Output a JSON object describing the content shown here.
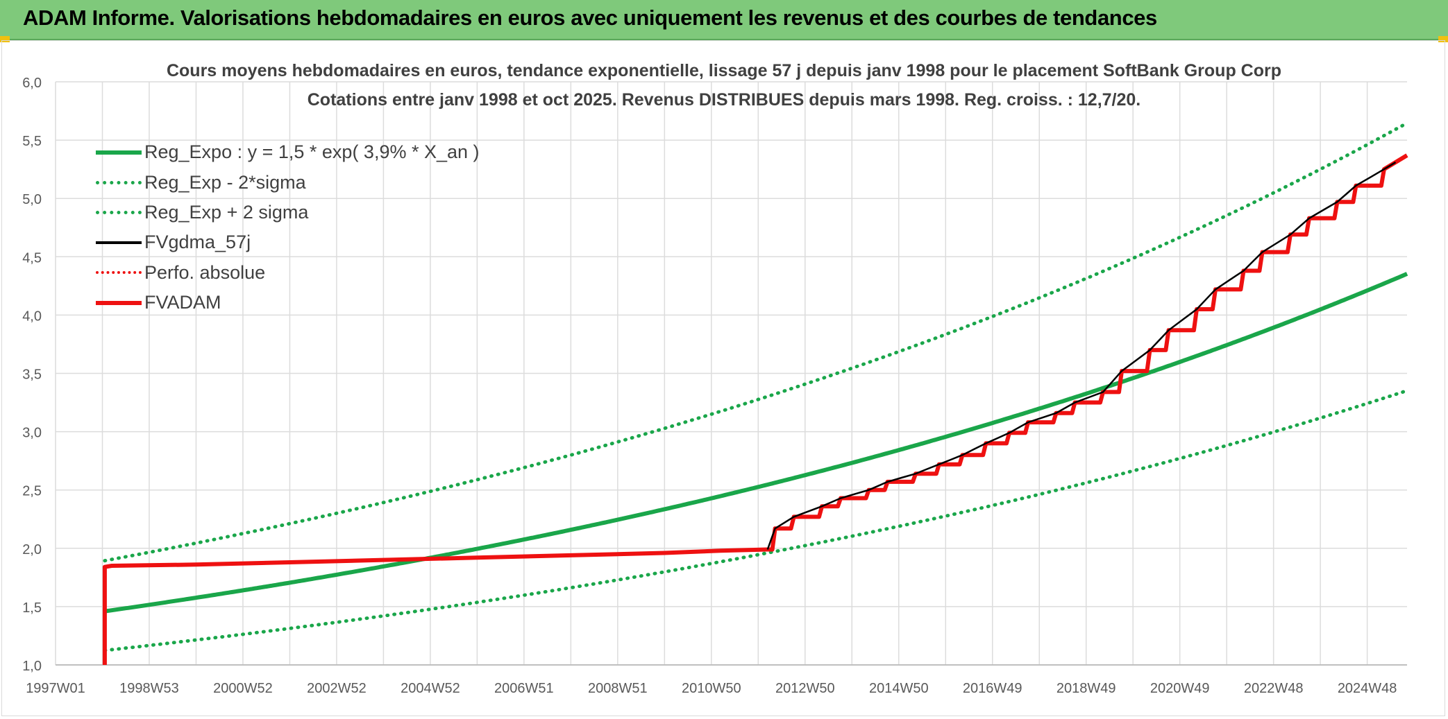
{
  "header": {
    "title": "ADAM Informe. Valorisations hebdomadaires en euros avec uniquement les revenus et des courbes de tendances"
  },
  "colors": {
    "header_bg": "#7fc97b",
    "trend_green": "#1aa64a",
    "band_green": "#1aa64a",
    "fv_black": "#000000",
    "adam_red": "#ee1111",
    "grid": "#dcdcdc"
  },
  "chart_data": {
    "type": "line",
    "title_line1": "Cours moyens hebdomadaires en euros, tendance exponentielle, lissage 57 j depuis janv 1998 pour le placement SoftBank Group Corp",
    "title_line2": "Cotations entre janv 1998 et oct 2025. Revenus DISTRIBUES depuis mars 1998. Reg. croiss. : 12,7/20.",
    "xlabel": "",
    "ylabel": "",
    "ylim": [
      1.0,
      6.0
    ],
    "xlim": [
      1997.0,
      2025.85
    ],
    "y_ticks": [
      "1,0",
      "1,5",
      "2,0",
      "2,5",
      "3,0",
      "3,5",
      "4,0",
      "4,5",
      "5,0",
      "5,5",
      "6,0"
    ],
    "y_tick_values": [
      1.0,
      1.5,
      2.0,
      2.5,
      3.0,
      3.5,
      4.0,
      4.5,
      5.0,
      5.5,
      6.0
    ],
    "x_ticks": [
      "1997W01",
      "1998W53",
      "2000W52",
      "2002W52",
      "2004W52",
      "2006W51",
      "2008W51",
      "2010W50",
      "2012W50",
      "2014W50",
      "2016W49",
      "2018W49",
      "2020W49",
      "2022W48",
      "2024W48"
    ],
    "x_tick_values": [
      1997.0,
      1999.0,
      2001.0,
      2003.0,
      2005.0,
      2007.0,
      2009.0,
      2011.0,
      2013.0,
      2015.0,
      2017.0,
      2019.0,
      2021.0,
      2023.0,
      2025.0
    ],
    "legend": [
      {
        "name": "Reg_Expo : y = 1,5 * exp( 3,9% *  X_an )",
        "style": "solid-green"
      },
      {
        "name": "Reg_Exp - 2*sigma",
        "style": "dotted-green"
      },
      {
        "name": "Reg_Exp + 2 sigma",
        "style": "dotted-green"
      },
      {
        "name": "FVgdma_57j",
        "style": "solid-black"
      },
      {
        "name": "Perfo. absolue",
        "style": "dotted-red"
      },
      {
        "name": "FVADAM",
        "style": "solid-red"
      }
    ],
    "regression": {
      "start_x": 1998.05,
      "a": 1.46,
      "rate": 0.0393,
      "sigma_low_factor": 0.77,
      "sigma_high_factor": 1.297
    },
    "series": [
      {
        "name": "FVADAM",
        "points": [
          [
            1998.05,
            1.0
          ],
          [
            1998.05,
            1.84
          ],
          [
            1998.2,
            1.85
          ],
          [
            2000.0,
            1.86
          ],
          [
            2002.0,
            1.88
          ],
          [
            2004.0,
            1.9
          ],
          [
            2006.0,
            1.92
          ],
          [
            2008.0,
            1.94
          ],
          [
            2010.0,
            1.96
          ],
          [
            2011.2,
            1.98
          ],
          [
            2012.2,
            1.99
          ]
        ],
        "steps": [
          [
            2012.3,
            2.17
          ],
          [
            2012.7,
            2.27
          ],
          [
            2013.3,
            2.36
          ],
          [
            2013.7,
            2.43
          ],
          [
            2014.3,
            2.5
          ],
          [
            2014.7,
            2.57
          ],
          [
            2015.3,
            2.64
          ],
          [
            2015.8,
            2.72
          ],
          [
            2016.3,
            2.8
          ],
          [
            2016.8,
            2.9
          ],
          [
            2017.3,
            2.99
          ],
          [
            2017.7,
            3.08
          ],
          [
            2018.3,
            3.16
          ],
          [
            2018.7,
            3.25
          ],
          [
            2019.3,
            3.34
          ],
          [
            2019.7,
            3.52
          ],
          [
            2020.3,
            3.7
          ],
          [
            2020.7,
            3.87
          ],
          [
            2021.3,
            4.05
          ],
          [
            2021.7,
            4.22
          ],
          [
            2022.3,
            4.38
          ],
          [
            2022.7,
            4.54
          ],
          [
            2023.3,
            4.69
          ],
          [
            2023.7,
            4.83
          ],
          [
            2024.3,
            4.97
          ],
          [
            2024.7,
            5.11
          ],
          [
            2025.3,
            5.25
          ]
        ],
        "end": [
          2025.85,
          5.37
        ]
      }
    ]
  }
}
